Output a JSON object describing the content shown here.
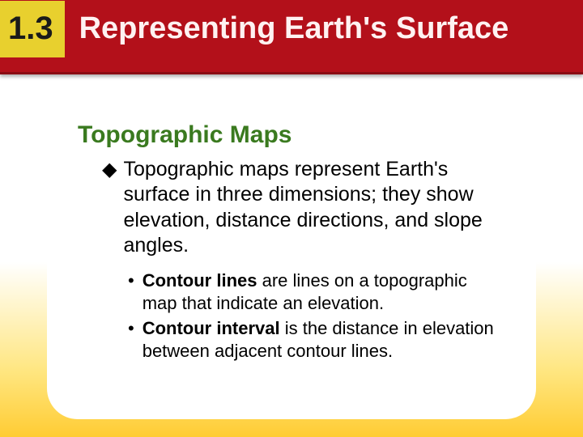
{
  "header": {
    "section_number": "1.3",
    "title": "Representing Earth's Surface",
    "band_color": "#b3101a",
    "band_border": "#8a0c14",
    "number_box_bg": "#e8d02e",
    "title_color": "#fff2f2",
    "title_fontsize": 38,
    "number_fontsize": 40
  },
  "card": {
    "bg": "#ffffff",
    "radius": 38
  },
  "subtitle": {
    "text": "Topographic Maps",
    "color": "#3a7a1f",
    "fontsize": 30
  },
  "main_point": {
    "bullet": "◆",
    "text": "Topographic maps represent Earth's surface in three dimensions; they show elevation, distance directions, and slope angles.",
    "fontsize": 25
  },
  "sub_points": [
    {
      "bullet": "•",
      "bold_lead": "Contour lines",
      "rest": " are lines on a topographic map that indicate an elevation."
    },
    {
      "bullet": "•",
      "bold_lead": "Contour interval",
      "rest": " is the distance in elevation between adjacent contour lines."
    }
  ],
  "sub_fontsize": 22,
  "page_bg_gradient": {
    "top": "#ffffff",
    "mid": "#ffe680",
    "bottom": "#ffcc33"
  }
}
